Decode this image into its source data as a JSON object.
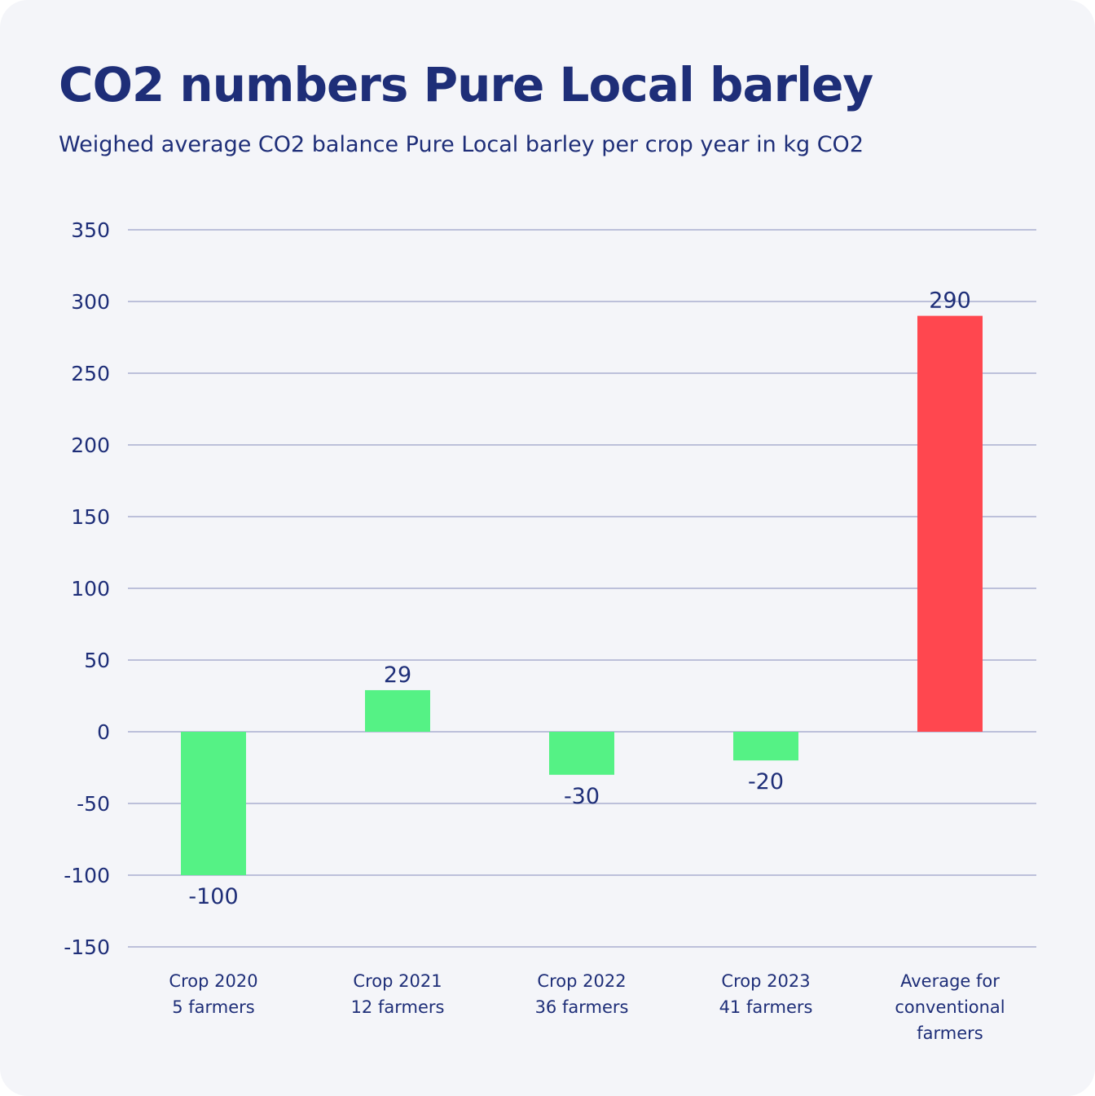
{
  "chart_data": {
    "type": "bar",
    "title": "CO2 numbers Pure Local barley",
    "subtitle": "Weighed average CO2 balance Pure Local barley per crop year in kg CO2",
    "categories": [
      [
        "Crop 2020",
        "5 farmers"
      ],
      [
        "Crop 2021",
        "12 farmers"
      ],
      [
        "Crop 2022",
        "36 farmers"
      ],
      [
        "Crop 2023",
        "41 farmers"
      ],
      [
        "Average for",
        "conventional",
        "farmers"
      ]
    ],
    "values": [
      -100,
      29,
      -30,
      -20,
      290
    ],
    "data_labels": [
      "-100",
      "29",
      "-30",
      "-20",
      "290"
    ],
    "colors": [
      "#55f285",
      "#55f285",
      "#55f285",
      "#55f285",
      "#ff474f"
    ],
    "ylim": [
      -150,
      350
    ],
    "yticks": [
      350,
      300,
      250,
      200,
      150,
      100,
      50,
      0,
      -50,
      -100,
      -150
    ],
    "grid": true,
    "xlabel": "",
    "ylabel": ""
  }
}
